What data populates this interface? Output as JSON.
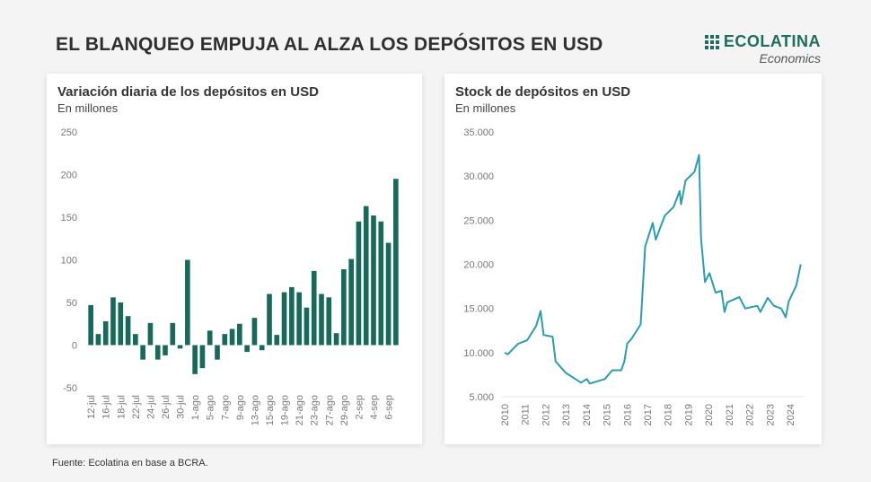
{
  "header": {
    "title": "EL BLANQUEO EMPUJA AL ALZA LOS DEPÓSITOS EN USD"
  },
  "logo": {
    "name": "ECOLATINA",
    "tagline": "Economics",
    "color": "#1d6e5b"
  },
  "footer": {
    "source": "Fuente: Ecolatina en base a BCRA."
  },
  "chart_data": [
    {
      "type": "bar",
      "title": "Variación diaria de los depósitos en USD",
      "subtitle": "En millones",
      "color": "#17695a",
      "ylim": [
        -50,
        250
      ],
      "yticks": [
        -50,
        0,
        50,
        100,
        150,
        200,
        250
      ],
      "grid": false,
      "categories": [
        "12-jul",
        "",
        "16-jul",
        "",
        "18-jul",
        "",
        "22-jul",
        "",
        "24-jul",
        "",
        "26-jul",
        "",
        "30-jul",
        "",
        "1-ago",
        "",
        "5-ago",
        "",
        "7-ago",
        "",
        "9-ago",
        "",
        "13-ago",
        "",
        "15-ago",
        "",
        "19-ago",
        "",
        "21-ago",
        "",
        "23-ago",
        "",
        "27-ago",
        "",
        "29-ago",
        "",
        "2-sep",
        "",
        "4-sep",
        "",
        "6-sep",
        ""
      ],
      "values": [
        47,
        13,
        28,
        56,
        50,
        34,
        13,
        -17,
        26,
        -17,
        -12,
        26,
        -4,
        100,
        -34,
        -27,
        17,
        -17,
        13,
        19,
        25,
        -8,
        32,
        -6,
        60,
        12,
        62,
        68,
        62,
        44,
        87,
        60,
        56,
        14,
        89,
        101,
        145,
        163,
        152,
        145,
        120,
        195
      ]
    },
    {
      "type": "line",
      "title": "Stock de depósitos en USD",
      "subtitle": "En millones",
      "color": "#2a9db3",
      "ylim": [
        5000,
        35000
      ],
      "yticks": [
        "5.000",
        "10.000",
        "15.000",
        "20.000",
        "25.000",
        "30.000",
        "35.000"
      ],
      "xticks": [
        "2010",
        "2011",
        "2012",
        "2013",
        "2014",
        "2015",
        "2016",
        "2017",
        "2018",
        "2019",
        "2020",
        "2021",
        "2022",
        "2023",
        "2024"
      ],
      "grid": false,
      "x": [
        2010.0,
        2010.15,
        2010.66,
        2011.1,
        2011.54,
        2011.76,
        2011.91,
        2012.35,
        2012.5,
        2013.0,
        2013.74,
        2014.03,
        2014.18,
        2014.91,
        2015.28,
        2015.72,
        2015.87,
        2016.01,
        2016.23,
        2016.67,
        2016.89,
        2017.26,
        2017.41,
        2017.85,
        2018.28,
        2018.58,
        2018.65,
        2018.87,
        2019.31,
        2019.53,
        2019.63,
        2019.82,
        2020.04,
        2020.34,
        2020.63,
        2020.78,
        2020.92,
        2021.51,
        2021.8,
        2022.39,
        2022.54,
        2022.9,
        2023.2,
        2023.56,
        2023.78,
        2023.93,
        2024.3,
        2024.52
      ],
      "y": [
        10000,
        9800,
        11000,
        11400,
        13000,
        14700,
        12000,
        11800,
        9000,
        7700,
        6600,
        7000,
        6500,
        7000,
        8000,
        8000,
        9000,
        11000,
        11600,
        13200,
        22000,
        24700,
        22800,
        25500,
        26500,
        28300,
        26800,
        29500,
        30500,
        32400,
        23000,
        18000,
        19000,
        16800,
        17000,
        14600,
        15700,
        16300,
        15000,
        15300,
        14600,
        16200,
        15300,
        15000,
        14000,
        15800,
        17600,
        20000
      ]
    }
  ]
}
